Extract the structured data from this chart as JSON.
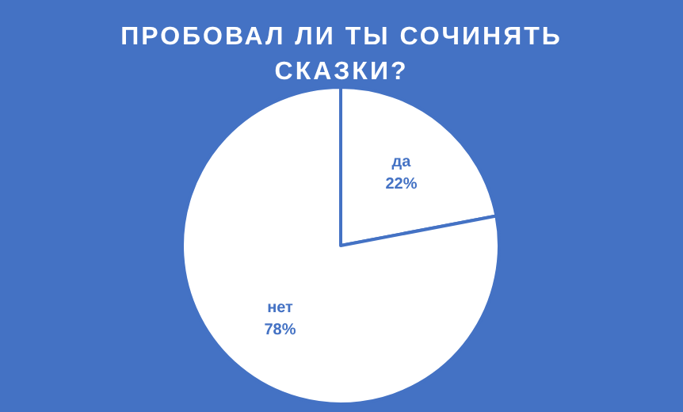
{
  "chart_data": {
    "type": "pie",
    "title": "ПРОБОВАЛ ЛИ ТЫ СОЧИНЯТЬ СКАЗКИ?",
    "categories": [
      "да",
      "нет"
    ],
    "values": [
      22,
      78
    ],
    "colors": [
      "#ffffff",
      "#ffffff"
    ],
    "value_labels": [
      "22%",
      "78%"
    ]
  }
}
